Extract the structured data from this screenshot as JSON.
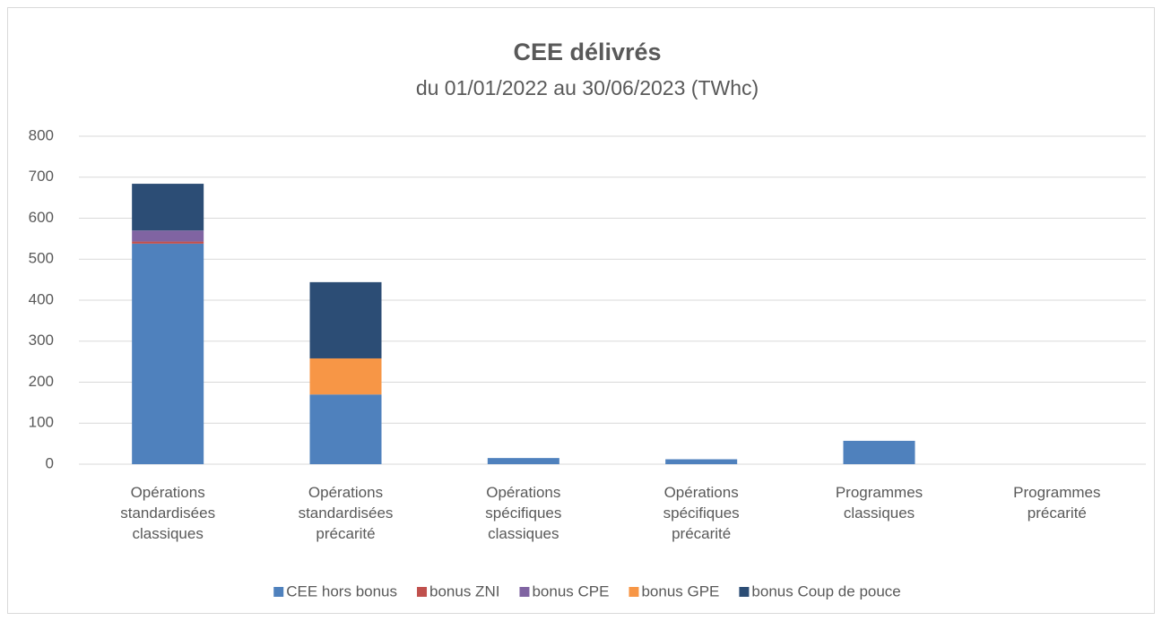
{
  "chart_data": {
    "type": "stacked_bar",
    "title": "CEE délivrés",
    "subtitle": "du 01/01/2022 au 30/06/2023 (TWhc)",
    "categories": [
      "Opérations standardisées classiques",
      "Opérations standardisées précarité",
      "Opérations spécifiques classiques",
      "Opérations spécifiques précarité",
      "Programmes classiques",
      "Programmes précarité"
    ],
    "series": [
      {
        "name": "CEE hors bonus",
        "color": "#4f81bd",
        "values": [
          538,
          170,
          15,
          12,
          57,
          0
        ]
      },
      {
        "name": "bonus ZNI",
        "color": "#c0504d",
        "values": [
          5,
          0,
          0,
          0,
          0,
          0
        ]
      },
      {
        "name": "bonus CPE",
        "color": "#8064a2",
        "values": [
          27,
          0,
          0,
          0,
          0,
          0
        ]
      },
      {
        "name": "bonus GPE",
        "color": "#f79646",
        "values": [
          0,
          88,
          0,
          0,
          0,
          0
        ]
      },
      {
        "name": "bonus Coup de pouce",
        "color": "#2c4d75",
        "values": [
          114,
          186,
          0,
          0,
          0,
          0
        ]
      }
    ],
    "ylim": [
      0,
      800
    ],
    "yticks": [
      0,
      100,
      200,
      300,
      400,
      500,
      600,
      700,
      800
    ],
    "grid": true,
    "legend": "bottom"
  }
}
